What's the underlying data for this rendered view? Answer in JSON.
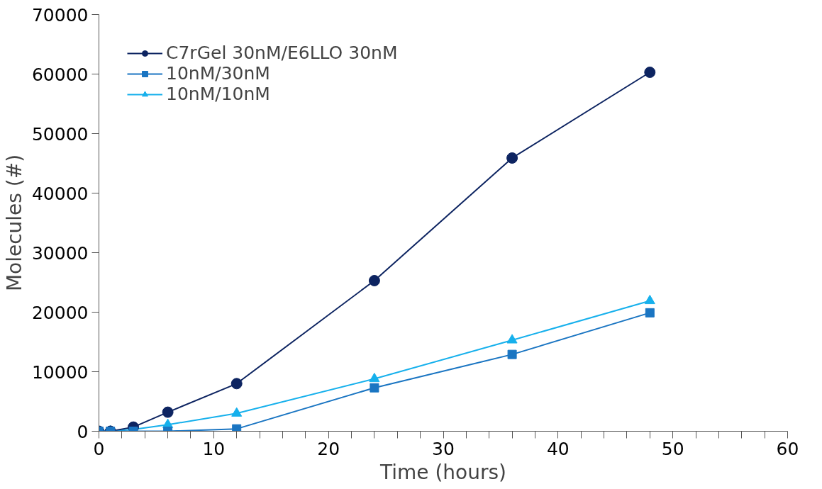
{
  "chart_data": {
    "type": "line",
    "xlabel": "Time (hours)",
    "ylabel": "Molecules (#)",
    "x": [
      0,
      1,
      3,
      6,
      12,
      24,
      36,
      48
    ],
    "series": [
      {
        "name": "C7rGel 30nM/E6LLO 30nM",
        "color": "#0d2461",
        "marker": "circle",
        "values": [
          0,
          0,
          700,
          3200,
          8000,
          25300,
          45900,
          60300
        ]
      },
      {
        "name": "10nM/30nM",
        "color": "#1a75c2",
        "marker": "square",
        "values": [
          0,
          0,
          0,
          0,
          400,
          7300,
          12900,
          19900
        ]
      },
      {
        "name": "10nM/10nM",
        "color": "#16b0ec",
        "marker": "triangle",
        "values": [
          0,
          0,
          300,
          1100,
          3000,
          8800,
          15300,
          21900
        ]
      }
    ],
    "xlim": [
      0,
      60
    ],
    "ylim": [
      0,
      70000
    ],
    "xticks": [
      0,
      {
        "value": 2,
        "label": null
      },
      {
        "value": 4,
        "label": null
      },
      {
        "value": 6,
        "label": null
      },
      {
        "value": 8,
        "label": null
      },
      10,
      {
        "value": 12,
        "label": null
      },
      {
        "value": 14,
        "label": null
      },
      {
        "value": 16,
        "label": null
      },
      {
        "value": 18,
        "label": null
      },
      20,
      {
        "value": 22,
        "label": null
      },
      {
        "value": 24,
        "label": null
      },
      {
        "value": 26,
        "label": null
      },
      {
        "value": 28,
        "label": null
      },
      30,
      {
        "value": 32,
        "label": null
      },
      {
        "value": 34,
        "label": null
      },
      {
        "value": 36,
        "label": null
      },
      {
        "value": 38,
        "label": null
      },
      40,
      {
        "value": 42,
        "label": null
      },
      {
        "value": 44,
        "label": null
      },
      {
        "value": 46,
        "label": null
      },
      {
        "value": 48,
        "label": null
      },
      50,
      {
        "value": 52,
        "label": null
      },
      {
        "value": 54,
        "label": null
      },
      {
        "value": 56,
        "label": null
      },
      {
        "value": 58,
        "label": null
      },
      60
    ],
    "yticks": [
      0,
      10000,
      20000,
      30000,
      40000,
      50000,
      60000,
      70000
    ],
    "grid": false,
    "legend": "top left",
    "line_style": "solid"
  }
}
